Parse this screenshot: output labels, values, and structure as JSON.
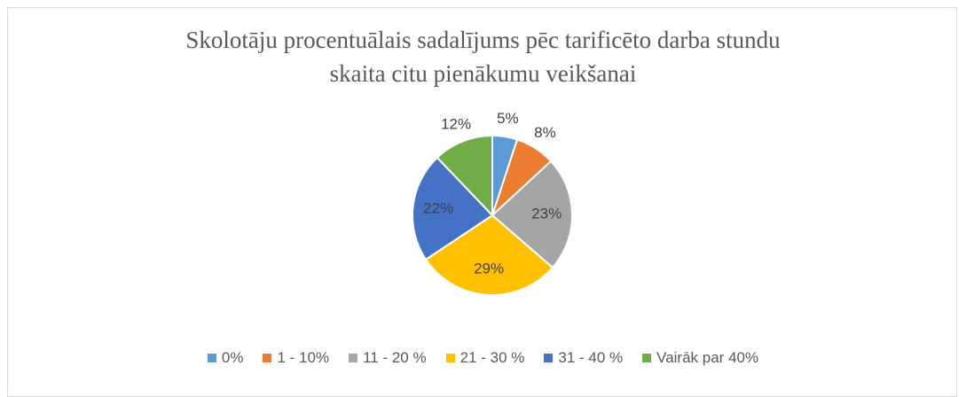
{
  "chart_data": {
    "type": "pie",
    "title": "Skolotāju procentuālais sadalījums pēc tarificēto darba stundu skaita citu pienākumu veikšanai",
    "categories": [
      "0%",
      "1 - 10%",
      "11 - 20 %",
      "21 - 30 %",
      "31 - 40 %",
      "Vairāk par 40%"
    ],
    "values": [
      5,
      8,
      23,
      29,
      22,
      12
    ],
    "value_labels": [
      "5%",
      "8%",
      "23%",
      "29%",
      "22%",
      "12%"
    ],
    "colors": [
      "#5b9bd5",
      "#ed7d31",
      "#a5a5a5",
      "#ffc000",
      "#4472c4",
      "#70ad47"
    ],
    "legend": "bottom"
  }
}
